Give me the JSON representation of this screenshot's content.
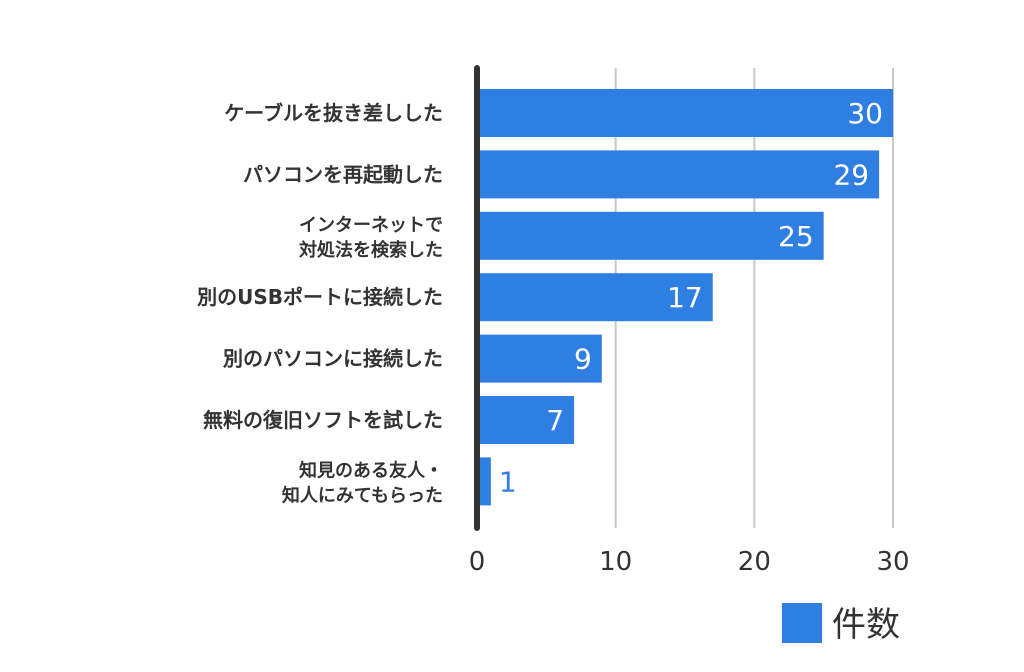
{
  "chart_data": {
    "type": "bar",
    "orientation": "horizontal",
    "categories": [
      [
        "ケーブルを抜き差しした"
      ],
      [
        "パソコンを再起動した"
      ],
      [
        "インターネットで",
        "対処法を検索した"
      ],
      [
        "別のUSBポートに接続した"
      ],
      [
        "別のパソコンに接続した"
      ],
      [
        "無料の復旧ソフトを試した"
      ],
      [
        "知見のある友人・",
        "知人にみてもらった"
      ]
    ],
    "series": [
      {
        "name": "件数",
        "values": [
          30,
          29,
          25,
          17,
          9,
          7,
          1
        ],
        "color": "#2f7fe3"
      }
    ],
    "xlim": [
      0,
      30
    ],
    "xticks": [
      "0",
      "10",
      "20",
      "30"
    ],
    "grid": true,
    "legend": "bottom-right",
    "data_labels": true
  }
}
